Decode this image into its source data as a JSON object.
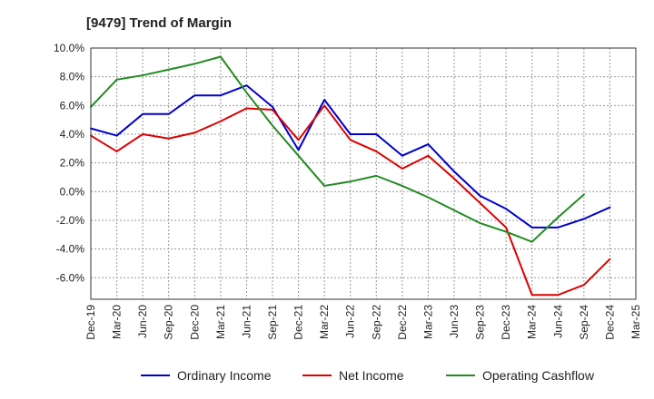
{
  "chart_data": {
    "type": "line",
    "title": "[9479]  Trend of Margin",
    "xlabel": "",
    "ylabel": "",
    "ylim": [
      -7.5,
      10.0
    ],
    "y_ticks": [
      "10.0%",
      "8.0%",
      "6.0%",
      "4.0%",
      "2.0%",
      "0.0%",
      "-2.0%",
      "-4.0%",
      "-6.0%"
    ],
    "y_tick_values": [
      10,
      8,
      6,
      4,
      2,
      0,
      -2,
      -4,
      -6
    ],
    "grid": true,
    "legend_position": "bottom",
    "categories": [
      "Dec-19",
      "Mar-20",
      "Jun-20",
      "Sep-20",
      "Dec-20",
      "Mar-21",
      "Jun-21",
      "Sep-21",
      "Dec-21",
      "Mar-22",
      "Jun-22",
      "Sep-22",
      "Dec-22",
      "Mar-23",
      "Jun-23",
      "Sep-23",
      "Dec-23",
      "Mar-24",
      "Jun-24",
      "Sep-24",
      "Dec-24",
      "Mar-25"
    ],
    "series": [
      {
        "name": "Ordinary Income",
        "color": "#0000cc",
        "values": [
          4.4,
          3.9,
          5.4,
          5.4,
          6.7,
          6.7,
          7.4,
          5.9,
          2.9,
          6.4,
          4.0,
          4.0,
          2.5,
          3.3,
          1.4,
          -0.3,
          -1.2,
          -2.5,
          -2.5,
          -1.9,
          -1.1,
          null
        ]
      },
      {
        "name": "Net Income",
        "color": "#dd0000",
        "values": [
          3.9,
          2.8,
          4.0,
          3.7,
          4.1,
          4.9,
          5.8,
          5.7,
          3.6,
          6.0,
          3.6,
          2.8,
          1.6,
          2.5,
          0.9,
          -0.8,
          -2.5,
          -7.2,
          -7.2,
          -6.5,
          -4.7,
          null
        ]
      },
      {
        "name": "Operating Cashflow",
        "color": "#228b22",
        "values": [
          5.9,
          7.8,
          8.1,
          8.5,
          8.9,
          9.4,
          6.9,
          4.6,
          2.5,
          0.4,
          0.7,
          1.1,
          0.4,
          -0.4,
          -1.3,
          -2.2,
          -2.8,
          -3.5,
          -1.8,
          -0.2,
          null,
          null
        ]
      }
    ]
  }
}
